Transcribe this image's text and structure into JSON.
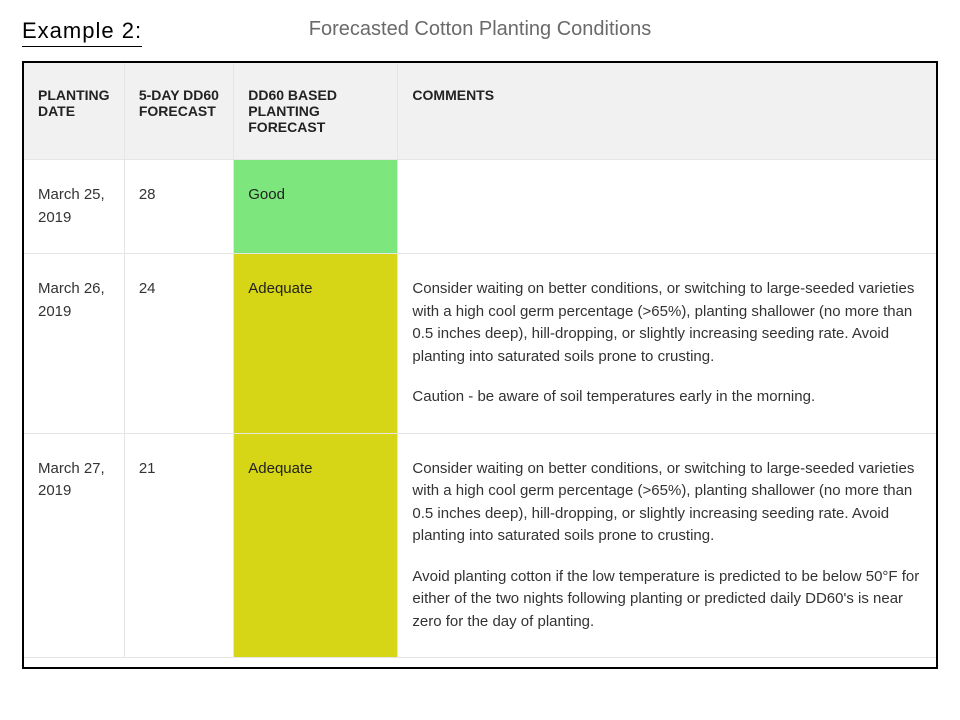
{
  "example_label": "Example 2:",
  "page_title": "Forecasted Cotton Planting Conditions",
  "table": {
    "columns": [
      "PLANTING DATE",
      "5-DAY DD60 FORECAST",
      "DD60 BASED PLANTING FORECAST",
      "COMMENTS"
    ],
    "column_widths_pct": [
      11,
      12,
      18,
      59
    ],
    "header_bg": "#f1f1f1",
    "header_color": "#222222",
    "border_color": "#000000",
    "cell_border_color": "#e5e5e5",
    "body_fontsize": 15,
    "header_fontsize": 14,
    "rows": [
      {
        "date": "March 25, 2019",
        "dd60": "28",
        "forecast": "Good",
        "forecast_bg": "#7de67d",
        "comments": []
      },
      {
        "date": "March 26, 2019",
        "dd60": "24",
        "forecast": "Adequate",
        "forecast_bg": "#d6d616",
        "comments": [
          "Consider waiting on better conditions, or switching to large-seeded varieties with a high cool germ percentage (>65%), planting shallower (no more than 0.5 inches deep), hill-dropping, or slightly increasing seeding rate. Avoid planting into saturated soils prone to crusting.",
          "Caution - be aware of soil temperatures early in the morning."
        ]
      },
      {
        "date": "March 27, 2019",
        "dd60": "21",
        "forecast": "Adequate",
        "forecast_bg": "#d6d616",
        "comments": [
          "Consider waiting on better conditions, or switching to large-seeded varieties with a high cool germ percentage (>65%), planting shallower (no more than 0.5 inches deep), hill-dropping, or slightly increasing seeding rate. Avoid planting into saturated soils prone to crusting.",
          "Avoid planting cotton if the low temperature is predicted to be below 50°F for either of the two nights following planting or predicted daily DD60's is near zero for the day of planting."
        ]
      }
    ]
  }
}
